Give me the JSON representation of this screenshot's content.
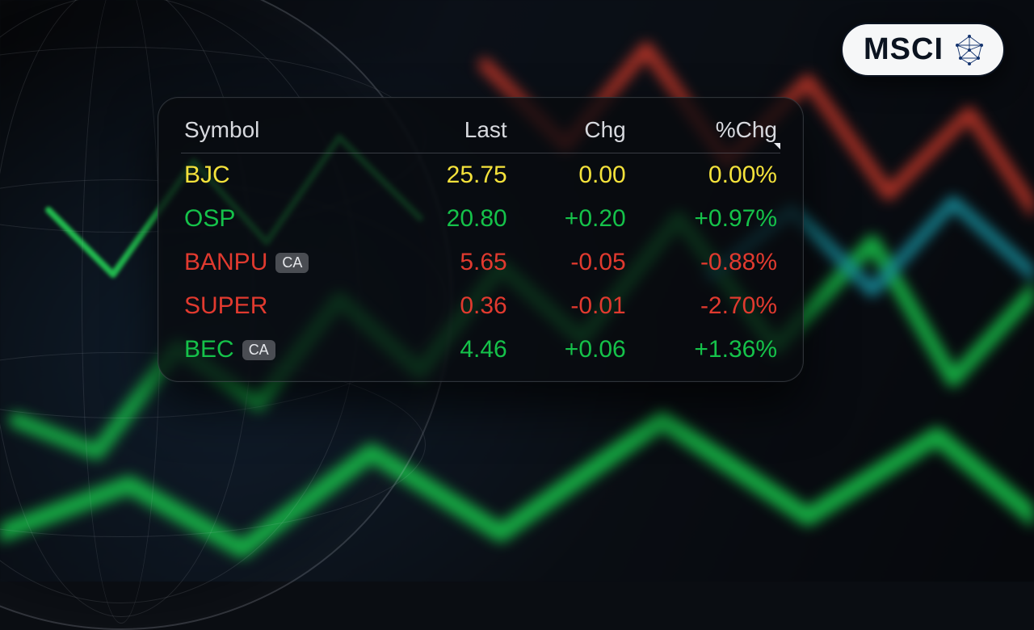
{
  "badge": {
    "label": "MSCI"
  },
  "panel": {
    "columns": {
      "symbol": "Symbol",
      "last": "Last",
      "chg": "Chg",
      "pct": "%Chg"
    },
    "ca_tag_text": "CA",
    "rows": [
      {
        "symbol": "BJC",
        "ca": false,
        "last": "25.75",
        "chg": "0.00",
        "pct": "0.00%",
        "dir": "flat"
      },
      {
        "symbol": "OSP",
        "ca": false,
        "last": "20.80",
        "chg": "+0.20",
        "pct": "+0.97%",
        "dir": "up"
      },
      {
        "symbol": "BANPU",
        "ca": true,
        "last": "5.65",
        "chg": "-0.05",
        "pct": "-0.88%",
        "dir": "down"
      },
      {
        "symbol": "SUPER",
        "ca": false,
        "last": "0.36",
        "chg": "-0.01",
        "pct": "-2.70%",
        "dir": "down"
      },
      {
        "symbol": "BEC",
        "ca": true,
        "last": "4.46",
        "chg": "+0.06",
        "pct": "+1.36%",
        "dir": "up"
      }
    ]
  },
  "colors": {
    "flat": "#f4e23b",
    "up": "#15c24a",
    "down": "#e13a2f",
    "panel_bg": "rgba(8,10,14,0.78)",
    "panel_border": "rgba(120,125,135,0.35)",
    "header_text": "#d7d9de",
    "badge_bg": "#f6f7f8",
    "badge_fg": "#0b1320"
  }
}
